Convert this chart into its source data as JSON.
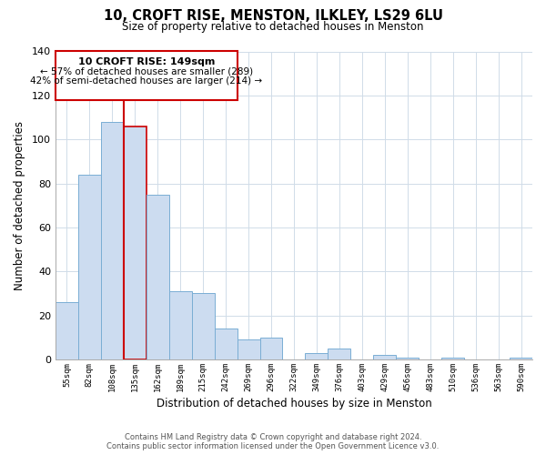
{
  "title": "10, CROFT RISE, MENSTON, ILKLEY, LS29 6LU",
  "subtitle": "Size of property relative to detached houses in Menston",
  "xlabel": "Distribution of detached houses by size in Menston",
  "ylabel": "Number of detached properties",
  "categories": [
    "55sqm",
    "82sqm",
    "108sqm",
    "135sqm",
    "162sqm",
    "189sqm",
    "215sqm",
    "242sqm",
    "269sqm",
    "296sqm",
    "322sqm",
    "349sqm",
    "376sqm",
    "403sqm",
    "429sqm",
    "456sqm",
    "483sqm",
    "510sqm",
    "536sqm",
    "563sqm",
    "590sqm"
  ],
  "values": [
    26,
    84,
    108,
    106,
    75,
    31,
    30,
    14,
    9,
    10,
    0,
    3,
    5,
    0,
    2,
    1,
    0,
    1,
    0,
    0,
    1
  ],
  "bar_color": "#ccdcf0",
  "bar_edge_color": "#7aaed4",
  "highlight_bar_index": 3,
  "highlight_bar_edge_color": "#cc0000",
  "vline_color": "#cc0000",
  "vline_bar_index": 3,
  "ylim": [
    0,
    140
  ],
  "yticks": [
    0,
    20,
    40,
    60,
    80,
    100,
    120,
    140
  ],
  "annotation_title": "10 CROFT RISE: 149sqm",
  "annotation_line1": "← 57% of detached houses are smaller (289)",
  "annotation_line2": "42% of semi-detached houses are larger (214) →",
  "footer_line1": "Contains HM Land Registry data © Crown copyright and database right 2024.",
  "footer_line2": "Contains public sector information licensed under the Open Government Licence v3.0.",
  "background_color": "#ffffff",
  "grid_color": "#d0dce8"
}
